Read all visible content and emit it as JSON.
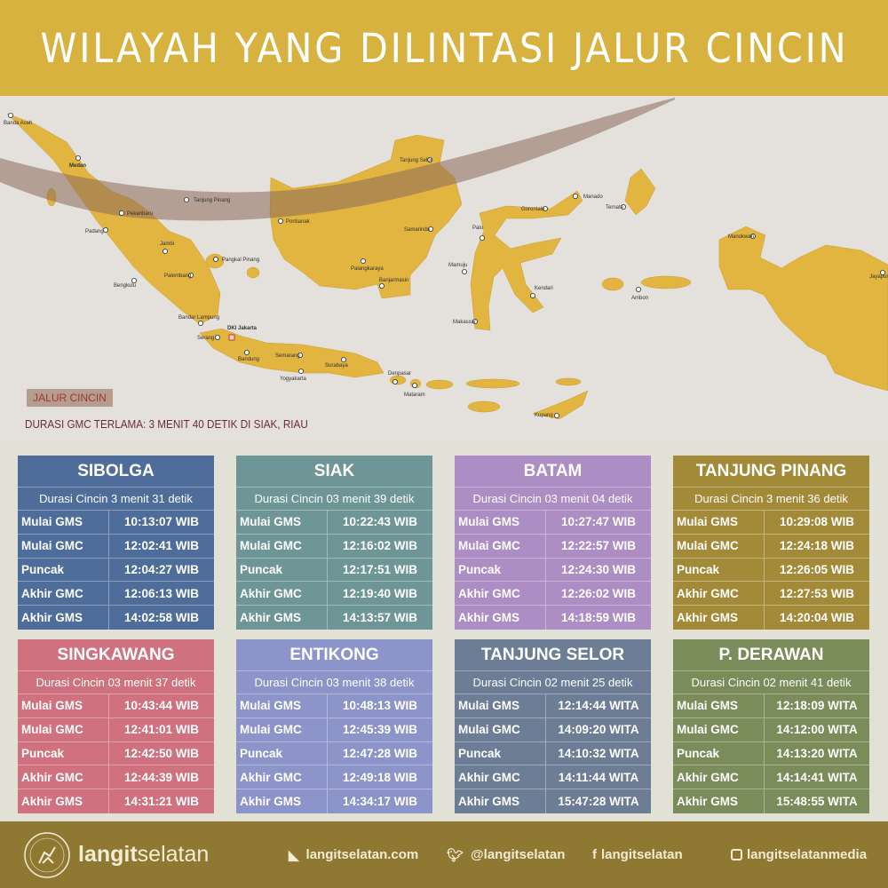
{
  "title": "WILAYAH YANG DILINTASI JALUR CINCIN",
  "colors": {
    "title_bar": "#d8b23f",
    "land": "#e2b440",
    "ring_path": "#8a6a5a",
    "footer": "#8e7832"
  },
  "map": {
    "legend_label": "JALUR CINCIN",
    "note": "DURASI GMC TERLAMA: 3 MENIT 40 DETIK DI SIAK, RIAU",
    "cities": [
      "Banda Aceh",
      "Medan",
      "Tanjung Pinang",
      "Pekanbaru",
      "Padang",
      "Jambi",
      "Pangkal Pinang",
      "Palembang",
      "Bengkulu",
      "Bandar Lampung",
      "Serang",
      "DKI Jakarta",
      "Bandung",
      "Semarang",
      "Yogyakarta",
      "Surabaya",
      "Denpasar",
      "Mataram",
      "Kupang",
      "Makassar",
      "Mamuju",
      "Palu",
      "Kendari",
      "Pontianak",
      "Samarinda",
      "Palangkaraya",
      "Banjarmasin",
      "Tanjung Selor",
      "Gorontalo",
      "Manado",
      "Ternate",
      "Manokwari",
      "Ambon",
      "Jayapura"
    ]
  },
  "row_labels": [
    "Mulai GMS",
    "Mulai GMC",
    "Puncak",
    "Akhir GMC",
    "Akhir GMS"
  ],
  "locations": [
    {
      "name": "SIBOLGA",
      "duration": "Durasi Cincin 3 menit 31 detik",
      "color": "#4f6d9a",
      "times": [
        "10:13:07 WIB",
        "12:02:41 WIB",
        "12:04:27 WIB",
        "12:06:13  WIB",
        "14:02:58 WIB"
      ]
    },
    {
      "name": "SIAK",
      "duration": "Durasi Cincin 03 menit 39 detik",
      "color": "#6f9696",
      "times": [
        "10:22:43 WIB",
        "12:16:02 WIB",
        "12:17:51 WIB",
        "12:19:40 WIB",
        "14:13:57 WIB"
      ]
    },
    {
      "name": "BATAM",
      "duration": "Durasi Cincin 03 menit 04 detik",
      "color": "#ad8ec4",
      "times": [
        "10:27:47 WIB",
        "12:22:57 WIB",
        "12:24:30 WIB",
        "12:26:02 WIB",
        "14:18:59 WIB"
      ]
    },
    {
      "name": "TANJUNG PINANG",
      "duration": "Durasi Cincin 3 menit 36 detik",
      "color": "#a38a38",
      "times": [
        "10:29:08 WIB",
        "12:24:18 WIB",
        "12:26:05 WIB",
        "12:27:53 WIB",
        "14:20:04 WIB"
      ]
    },
    {
      "name": "SINGKAWANG",
      "duration": "Durasi Cincin 03 menit 37 detik",
      "color": "#d0717f",
      "times": [
        "10:43:44 WIB",
        "12:41:01 WIB",
        "12:42:50 WIB",
        "12:44:39 WIB",
        "14:31:21 WIB"
      ]
    },
    {
      "name": "ENTIKONG",
      "duration": "Durasi Cincin 03 menit 38 detik",
      "color": "#8d94c9",
      "times": [
        "10:48:13 WIB",
        "12:45:39 WIB",
        "12:47:28 WIB",
        "12:49:18 WIB",
        "14:34:17 WIB"
      ]
    },
    {
      "name": "TANJUNG SELOR",
      "duration": "Durasi Cincin 02 menit 25 detik",
      "color": "#6e7d96",
      "times": [
        "12:14:44 WITA",
        "14:09:20 WITA",
        "14:10:32 WITA",
        "14:11:44 WITA",
        "15:47:28 WITA"
      ]
    },
    {
      "name": "P. DERAWAN",
      "duration": "Durasi Cincin 02 menit 41 detik",
      "color": "#7a8c5a",
      "times": [
        "12:18:09 WITA",
        "14:12:00 WITA",
        "14:13:20 WITA",
        "14:14:41 WITA",
        "15:48:55 WITA"
      ]
    }
  ],
  "footer": {
    "brand_bold": "langit",
    "brand_light": "selatan",
    "website": "langitselatan.com",
    "twitter": "@langitselatan",
    "facebook": "langitselatan",
    "instagram": "langitselatanmedia",
    "logo_text": "LANGITSELATAN"
  }
}
